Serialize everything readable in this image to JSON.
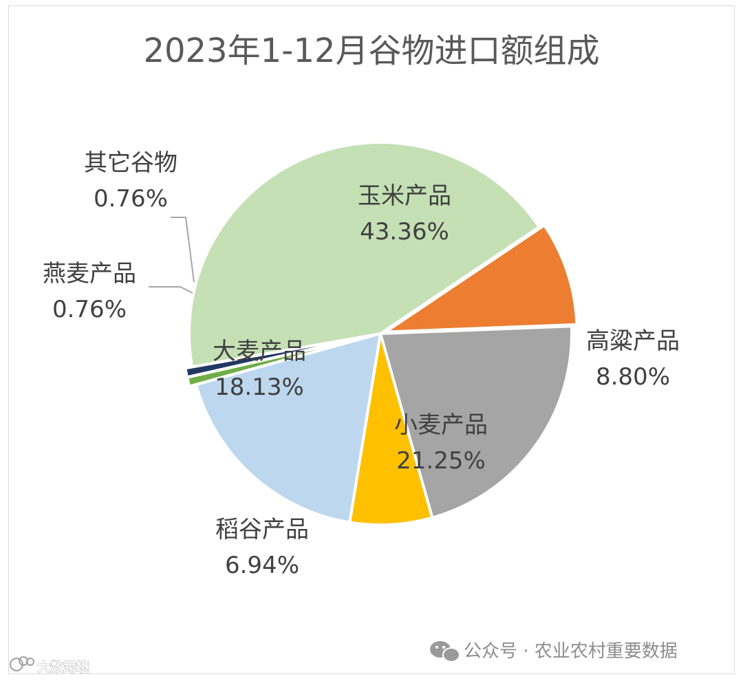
{
  "chart_data": {
    "type": "pie",
    "title": "2023年1-12月谷物进口额组成",
    "slices": [
      {
        "name": "玉米产品",
        "value": 43.36,
        "label": "43.36%",
        "color": "#c5e0b4"
      },
      {
        "name": "高粱产品",
        "value": 8.8,
        "label": "8.80%",
        "color": "#ed7d31"
      },
      {
        "name": "小麦产品",
        "value": 21.25,
        "label": "21.25%",
        "color": "#a5a5a5"
      },
      {
        "name": "稻谷产品",
        "value": 6.94,
        "label": "6.94%",
        "color": "#ffc000"
      },
      {
        "name": "大麦产品",
        "value": 18.13,
        "label": "18.13%",
        "color": "#bdd7ee"
      },
      {
        "name": "燕麦产品",
        "value": 0.76,
        "label": "0.76%",
        "color": "#70ad47"
      },
      {
        "name": "其它谷物",
        "value": 0.76,
        "label": "0.76%",
        "color": "#203864"
      }
    ]
  },
  "watermark": {
    "wechat_text": "公众号 · 农业农村重要数据",
    "corner_text": "大数跨境"
  }
}
